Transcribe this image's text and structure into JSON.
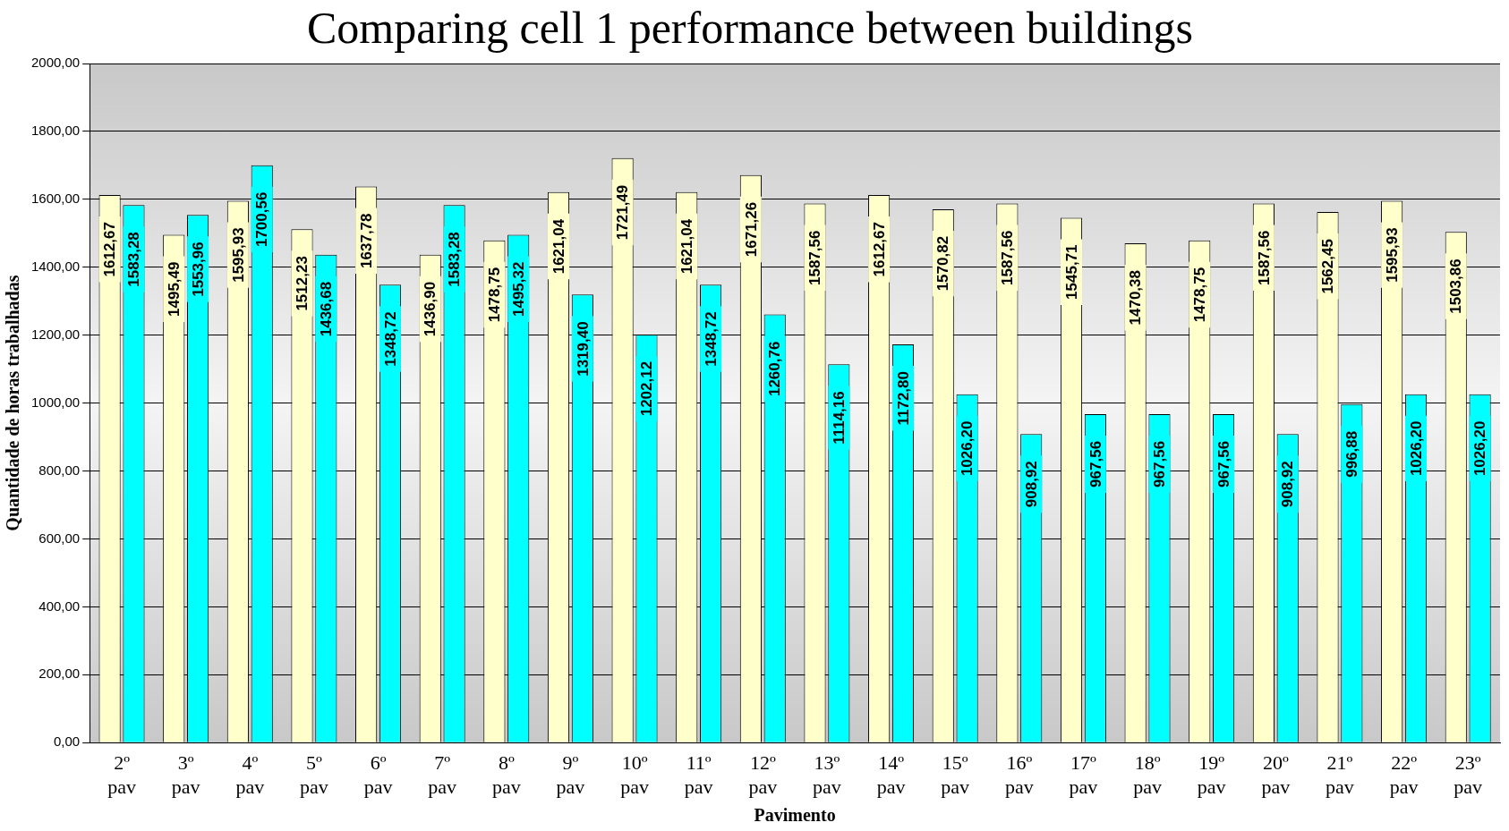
{
  "chart_data": {
    "type": "bar",
    "title": "Comparing cell 1 performance between buildings",
    "xlabel": "Pavimento",
    "ylabel": "Quantidade de horas trabalhadas",
    "categories": [
      "2º pav",
      "3º pav",
      "4º pav",
      "5º pav",
      "6º pav",
      "7º pav",
      "8º pav",
      "9º pav",
      "10º pav",
      "11º pav",
      "12º pav",
      "13º pav",
      "14º pav",
      "15º pav",
      "16º pav",
      "17º pav",
      "18º pav",
      "19º pav",
      "20º pav",
      "21º pav",
      "22º pav",
      "23º pav"
    ],
    "series": [
      {
        "color": "#ffffcc",
        "values": [
          1612.67,
          1495.49,
          1595.93,
          1512.23,
          1637.78,
          1436.9,
          1478.75,
          1621.04,
          1721.49,
          1621.04,
          1671.26,
          1587.56,
          1612.67,
          1570.82,
          1587.56,
          1545.71,
          1470.38,
          1478.75,
          1587.56,
          1562.45,
          1595.93,
          1503.86
        ],
        "value_labels": [
          "1612,67",
          "1495,49",
          "1595,93",
          "1512,23",
          "1637,78",
          "1436,90",
          "1478,75",
          "1621,04",
          "1721,49",
          "1621,04",
          "1671,26",
          "1587,56",
          "1612,67",
          "1570,82",
          "1587,56",
          "1545,71",
          "1470,38",
          "1478,75",
          "1587,56",
          "1562,45",
          "1595,93",
          "1503,86"
        ]
      },
      {
        "color": "#00ffff",
        "values": [
          1583.28,
          1553.96,
          1700.56,
          1436.68,
          1348.72,
          1583.28,
          1495.32,
          1319.4,
          1202.12,
          1348.72,
          1260.76,
          1114.16,
          1172.8,
          1026.2,
          908.92,
          967.56,
          967.56,
          967.56,
          908.92,
          996.88,
          1026.2,
          1026.2
        ],
        "value_labels": [
          "1583,28",
          "1553,96",
          "1700,56",
          "1436,68",
          "1348,72",
          "1583,28",
          "1495,32",
          "1319,40",
          "1202,12",
          "1348,72",
          "1260,76",
          "1114,16",
          "1172,80",
          "1026,20",
          "908,92",
          "967,56",
          "967,56",
          "967,56",
          "908,92",
          "996,88",
          "1026,20",
          "1026,20"
        ]
      }
    ],
    "ylim": [
      0,
      2000
    ],
    "yticks": [
      {
        "value": 0,
        "label": "0,00"
      },
      {
        "value": 200,
        "label": "200,00"
      },
      {
        "value": 400,
        "label": "400,00"
      },
      {
        "value": 600,
        "label": "600,00"
      },
      {
        "value": 800,
        "label": "800,00"
      },
      {
        "value": 1000,
        "label": "1000,00"
      },
      {
        "value": 1200,
        "label": "1200,00"
      },
      {
        "value": 1400,
        "label": "1400,00"
      },
      {
        "value": 1600,
        "label": "1600,00"
      },
      {
        "value": 1800,
        "label": "1800,00"
      },
      {
        "value": 2000,
        "label": "2000,00"
      }
    ],
    "grid": "y",
    "legend": false
  }
}
